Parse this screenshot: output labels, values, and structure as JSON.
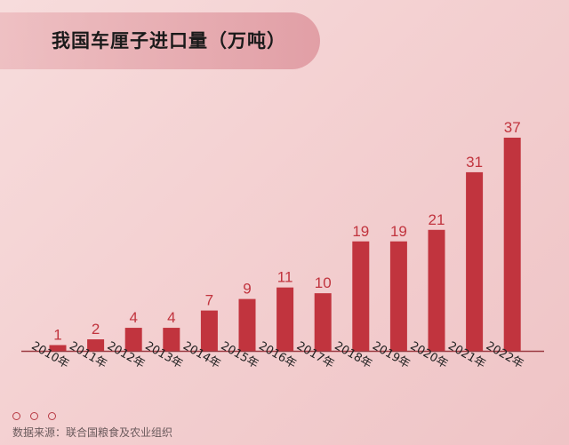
{
  "title": "我国车厘子进口量（万吨）",
  "source": "数据来源：联合国粮食及农业组织",
  "colors": {
    "bar": "#c1343e",
    "axis": "#9b3a42",
    "label": "#c1343e",
    "dots": "#b83a44"
  },
  "chart_data": {
    "type": "bar",
    "title": "我国车厘子进口量（万吨）",
    "categories": [
      "2010年",
      "2011年",
      "2012年",
      "2013年",
      "2014年",
      "2015年",
      "2016年",
      "2017年",
      "2018年",
      "2019年",
      "2020年",
      "2021年",
      "2022年"
    ],
    "values": [
      1,
      2,
      4,
      4,
      7,
      9,
      11,
      10,
      19,
      19,
      21,
      31,
      37
    ],
    "xlabel": "",
    "ylabel": "",
    "ylim": [
      0,
      37
    ],
    "grid": false,
    "data_labels": true
  }
}
